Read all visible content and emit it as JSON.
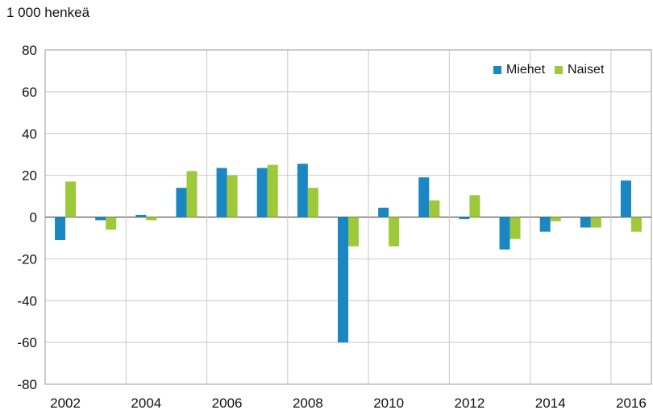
{
  "chart_data": {
    "type": "bar",
    "unit_label": "1 000 henkeä",
    "x": [
      2002,
      2003,
      2004,
      2005,
      2006,
      2007,
      2008,
      2009,
      2010,
      2011,
      2012,
      2013,
      2014,
      2015,
      2016
    ],
    "x_tick_labels": [
      "2002",
      "2004",
      "2006",
      "2008",
      "2010",
      "2012",
      "2014",
      "2016"
    ],
    "ylim": [
      -80,
      80
    ],
    "y_ticks": [
      -80,
      -60,
      -40,
      -20,
      0,
      20,
      40,
      60,
      80
    ],
    "grid": true,
    "legend_position": "top-right",
    "series": [
      {
        "name": "Miehet",
        "color": "#1a87c2",
        "values": [
          -11,
          -1.5,
          1,
          14,
          23.5,
          23.5,
          25.5,
          -60,
          4.5,
          19,
          -1,
          -15.5,
          -7,
          -5,
          17.5
        ]
      },
      {
        "name": "Naiset",
        "color": "#9ec93a",
        "values": [
          17,
          -6,
          -1.5,
          22,
          20,
          25,
          14,
          -14,
          -14,
          8,
          10.5,
          -10.5,
          -2,
          -5,
          -7
        ]
      }
    ]
  }
}
